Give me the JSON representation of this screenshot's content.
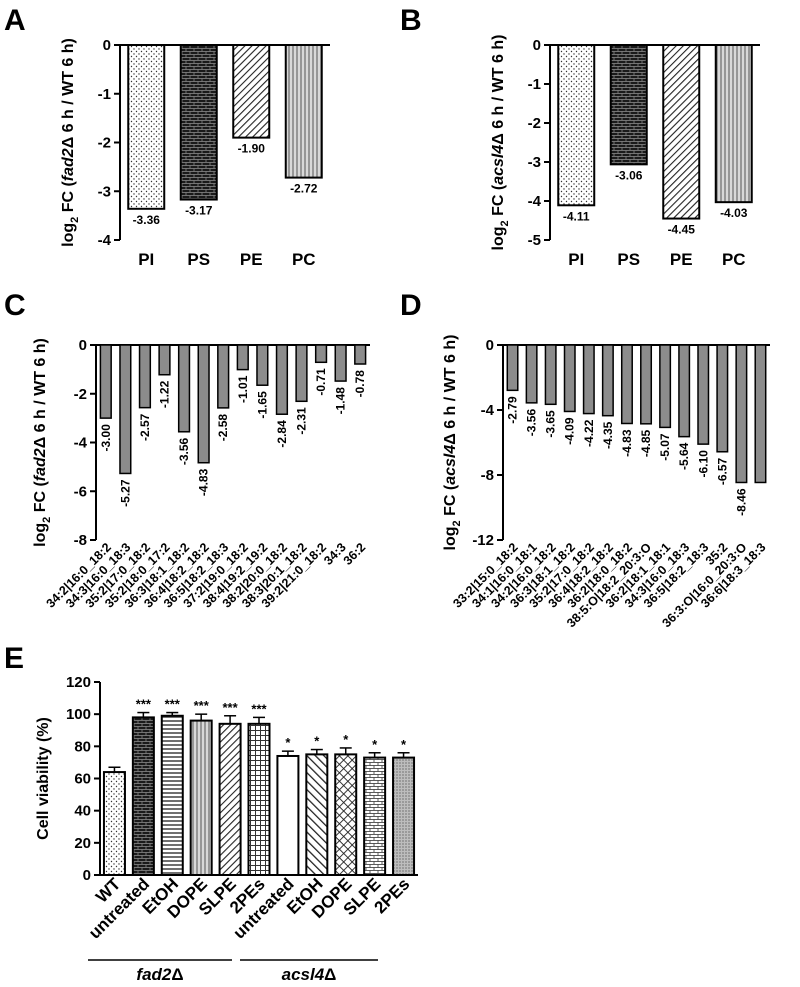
{
  "chart_data": [
    {
      "panel": "A",
      "type": "bar",
      "ylabel_prefix": "log",
      "ylabel_sub": "2",
      "ylabel_pre": " FC (",
      "ylabel_italic": "fad2",
      "ylabel_post": "Δ 6 h / WT 6 h)",
      "categories": [
        "PI",
        "PS",
        "PE",
        "PC"
      ],
      "values": [
        -3.36,
        -3.17,
        -1.9,
        -2.72
      ],
      "value_labels": [
        "-3.36",
        "-3.17",
        "-1.90",
        "-2.72"
      ],
      "patterns": [
        "dots",
        "brick",
        "diag",
        "vlines"
      ],
      "ylim": [
        -4,
        0
      ],
      "yticks": [
        0,
        -1,
        -2,
        -3,
        -4
      ]
    },
    {
      "panel": "B",
      "type": "bar",
      "ylabel_prefix": "log",
      "ylabel_sub": "2",
      "ylabel_pre": " FC (",
      "ylabel_italic": "acsl4",
      "ylabel_post": "Δ 6 h / WT 6 h)",
      "categories": [
        "PI",
        "PS",
        "PE",
        "PC"
      ],
      "values": [
        -4.11,
        -3.06,
        -4.45,
        -4.03
      ],
      "value_labels": [
        "-4.11",
        "-3.06",
        "-4.45",
        "-4.03"
      ],
      "patterns": [
        "dots",
        "brick",
        "diag",
        "vlines"
      ],
      "ylim": [
        -5,
        0
      ],
      "yticks": [
        0,
        -1,
        -2,
        -3,
        -4,
        -5
      ]
    },
    {
      "panel": "C",
      "type": "bar",
      "ylabel_prefix": "log",
      "ylabel_sub": "2",
      "ylabel_pre": " FC (",
      "ylabel_italic": "fad2",
      "ylabel_post": "Δ 6 h / WT 6 h)",
      "categories": [
        "34:2|16:0_18:2",
        "34:3|16:0_18:3",
        "35:2|17:0_18:2",
        "35:2|18:0_17:2",
        "36:3|18:1_18:2",
        "36:4|18:2_18:2",
        "36:5|18:2_18:3",
        "37:2|19:0_18:2",
        "38:4|19:2_19:2",
        "38:2|20:0_18:2",
        "38:3|20:1_18:2",
        "39:2|21:0_18:2",
        "34:3",
        "36:2"
      ],
      "values": [
        -3.0,
        -5.27,
        -2.57,
        -1.22,
        -3.56,
        -4.83,
        -2.58,
        -1.01,
        -1.65,
        -2.84,
        -2.31,
        -0.71,
        -1.48,
        -0.78
      ],
      "value_labels": [
        "-3.00",
        "-5.27",
        "-2.57",
        "-1.22",
        "-3.56",
        "-4.83",
        "-2.58",
        "-1.01",
        "-1.65",
        "-2.84",
        "-2.31",
        "-0.71",
        "-1.48",
        "-0.78"
      ],
      "color": "#8c8c8c",
      "ylim": [
        -8,
        0
      ],
      "yticks": [
        0,
        -2,
        -4,
        -6,
        -8
      ]
    },
    {
      "panel": "D",
      "type": "bar",
      "ylabel_prefix": "log",
      "ylabel_sub": "2",
      "ylabel_pre": " FC (",
      "ylabel_italic": "acsl4",
      "ylabel_post": "Δ 6 h / WT 6 h)",
      "categories": [
        "33:2|15:0_18:2",
        "34:1|16:0_18:1",
        "34:2|16:0_18:2",
        "36:3|18:1_18:2",
        "35:2|17:0_18:2",
        "36:4|18:2_18:2",
        "36:2|18:0_18:2",
        "38:5:O|18:2_20:3:O",
        "36:2|18:1_18:1",
        "34:3|16:0_18:3",
        "36:5|18:2_18:3",
        "35:2",
        "36:3:O|16:0_20:3:O",
        "36:6|18:3_18:3"
      ],
      "values": [
        -2.79,
        -3.56,
        -3.65,
        -4.09,
        -4.22,
        -4.35,
        -4.83,
        -4.85,
        -5.07,
        -5.64,
        -6.1,
        -6.57,
        -8.46,
        -8.46
      ],
      "value_labels": [
        "-2.79",
        "-3.56",
        "-3.65",
        "-4.09",
        "-4.22",
        "-4.35",
        "-4.83",
        "-4.85",
        "-5.07",
        "-5.64",
        "-6.10",
        "-6.57",
        "-8.46",
        ""
      ],
      "color": "#8c8c8c",
      "ylim": [
        -12,
        0
      ],
      "yticks": [
        0,
        -4,
        -8,
        -12
      ]
    },
    {
      "panel": "E",
      "type": "bar",
      "ylabel": "Cell viability (%)",
      "categories": [
        "WT",
        "untreated",
        "EtOH",
        "DOPE",
        "SLPE",
        "2PEs",
        "untreated",
        "EtOH",
        "DOPE",
        "SLPE",
        "2PEs"
      ],
      "values": [
        64,
        98,
        99,
        96,
        94,
        94,
        74,
        75,
        75,
        73,
        73
      ],
      "errors": [
        3,
        3,
        2,
        4,
        5,
        4,
        3,
        3,
        4,
        3,
        3
      ],
      "significance": [
        "",
        "***",
        "***",
        "***",
        "***",
        "***",
        "*",
        "*",
        "*",
        "*",
        "*"
      ],
      "patterns": [
        "dots",
        "brick",
        "hlines",
        "vlines",
        "diag",
        "grid",
        "none",
        "diagB",
        "cross",
        "brick2",
        "fine"
      ],
      "groups": [
        {
          "prefix": "fad2",
          "suffix": "Δ"
        },
        {
          "prefix": "acsl4",
          "suffix": "Δ"
        }
      ],
      "ylim": [
        0,
        120
      ],
      "yticks": [
        0,
        20,
        40,
        60,
        80,
        100,
        120
      ]
    }
  ]
}
